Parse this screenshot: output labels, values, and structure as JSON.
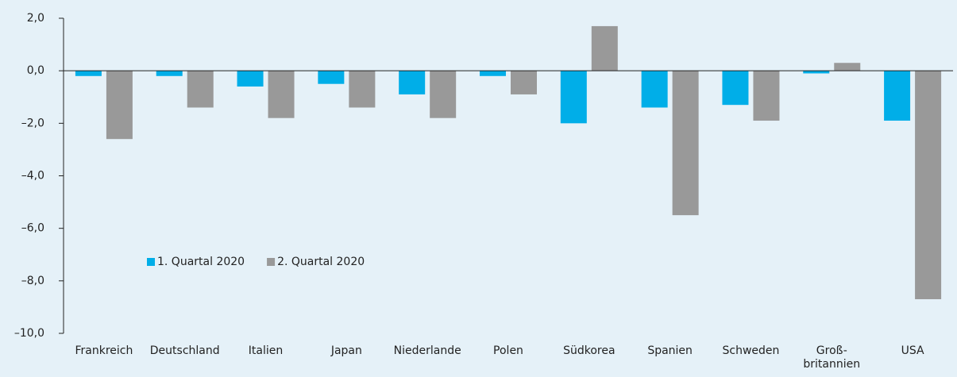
{
  "chart_data": {
    "type": "bar",
    "categories": [
      "Frankreich",
      "Deutschland",
      "Italien",
      "Japan",
      "Niederlande",
      "Polen",
      "Südkorea",
      "Spanien",
      "Schweden",
      "Groß-\nbritannien",
      "USA"
    ],
    "series": [
      {
        "name": "1. Quartal 2020",
        "color": "#00aee8",
        "values": [
          -0.2,
          -0.2,
          -0.6,
          -0.5,
          -0.9,
          -0.2,
          -2.0,
          -1.4,
          -1.3,
          -0.1,
          -1.9
        ]
      },
      {
        "name": "2. Quartal 2020",
        "color": "#999999",
        "values": [
          -2.6,
          -1.4,
          -1.8,
          -1.4,
          -1.8,
          -0.9,
          1.7,
          -5.5,
          -1.9,
          0.3,
          -8.7
        ]
      }
    ],
    "ylim": [
      -10,
      2
    ],
    "yticks": [
      {
        "value": 2,
        "label": "2,0"
      },
      {
        "value": 0,
        "label": "0,0"
      },
      {
        "value": -2,
        "label": "–2,0"
      },
      {
        "value": -4,
        "label": "–4,0"
      },
      {
        "value": -6,
        "label": "–6,0"
      },
      {
        "value": -8,
        "label": "–8,0"
      },
      {
        "value": -10,
        "label": "–10,0"
      }
    ],
    "grid": false,
    "legend": "lower left"
  }
}
